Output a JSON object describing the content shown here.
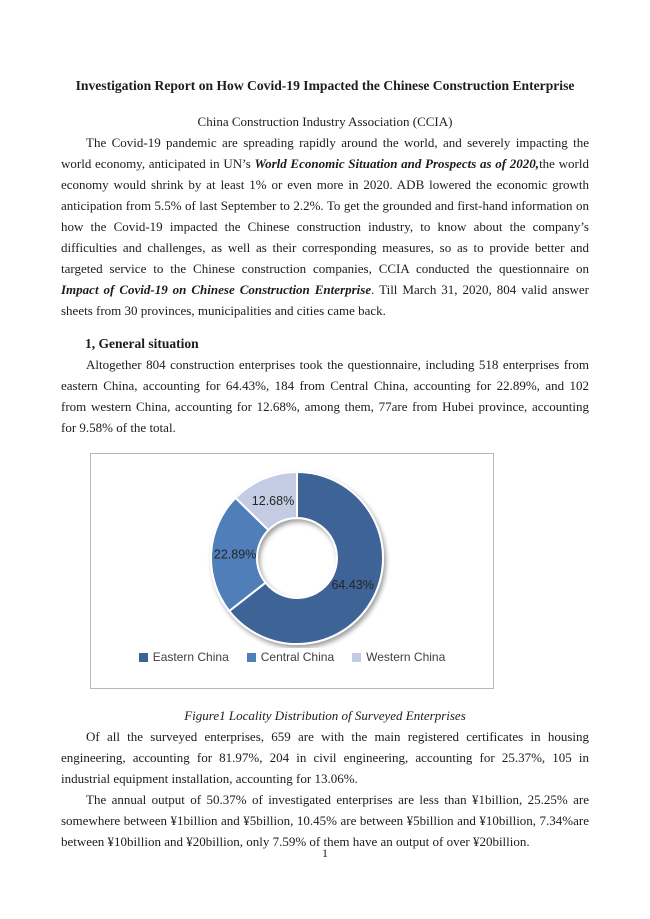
{
  "doc": {
    "title": "Investigation Report on How Covid-19 Impacted the Chinese Construction Enterprise",
    "subtitle": "China Construction Industry Association (CCIA)",
    "section1_heading": "1, General situation",
    "figure_caption": "Figure1 Locality Distribution of Surveyed Enterprises",
    "page_number": "1",
    "paragraphs": {
      "intro": [
        {
          "t": "The Covid-19 pandemic are spreading rapidly around the world, and severely impacting the world economy, anticipated in UN’s ",
          "s": "n"
        },
        {
          "t": "World Economic Situation and Prospects as of 2020,",
          "s": "bi"
        },
        {
          "t": "the world economy would shrink by at least 1% or even more in 2020. ADB lowered the economic growth anticipation from 5.5% of last September to 2.2%. To get the grounded and first-hand information on how the Covid-19 impacted the Chinese construction industry, to know about the company’s difficulties and challenges, as well as their corresponding measures, so as to provide better and targeted service to the Chinese construction companies, CCIA conducted the questionnaire on ",
          "s": "n"
        },
        {
          "t": "Impact of Covid-19 on Chinese Construction Enterprise",
          "s": "bi"
        },
        {
          "t": ". Till March 31, 2020, 804 valid answer sheets from 30 provinces, municipalities and cities came back.",
          "s": "n"
        }
      ],
      "general": [
        {
          "t": "Altogether 804 construction enterprises took the questionnaire, including 518 enterprises from eastern China, accounting for 64.43%, 184 from Central China, accounting for 22.89%, and 102 from western China, accounting for 12.68%, among them, 77are from Hubei province, accounting for 9.58% of the total.",
          "s": "n"
        }
      ],
      "certificates": [
        {
          "t": "Of all the surveyed enterprises, 659 are with the main registered certificates in housing engineering, accounting for 81.97%, 204 in civil engineering, accounting for 25.37%, 105 in industrial equipment installation, accounting for 13.06%.",
          "s": "n"
        }
      ],
      "output": [
        {
          "t": "The annual output of 50.37% of investigated enterprises are less than ¥1billion, 25.25% are somewhere between ¥1billion and ¥5billion, 10.45% are between ¥5billion and ¥10billion, 7.34%are between ¥10billion and ¥20billion, only 7.59% of them have an output of over ¥20billion.",
          "s": "n"
        }
      ]
    }
  },
  "chart_data": {
    "type": "pie",
    "subtype": "donut",
    "categories": [
      "Eastern China",
      "Central China",
      "Western China"
    ],
    "values": [
      64.43,
      22.89,
      12.68
    ],
    "data_labels": [
      "64.43%",
      "22.89%",
      "12.68%"
    ],
    "colors": [
      "#3D6397",
      "#4F7EB9",
      "#C3CCE2"
    ],
    "title": "",
    "legend_position": "bottom",
    "start_angle_deg": 0,
    "direction": "clockwise"
  }
}
